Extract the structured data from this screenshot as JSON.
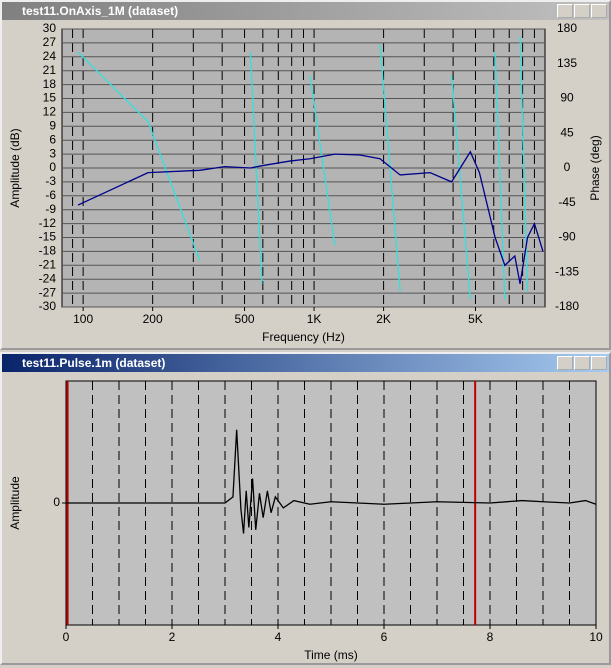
{
  "chart_data": [
    {
      "type": "line",
      "title": "test11.OnAxis_1M (dataset)",
      "xlabel": "Frequency (Hz)",
      "ylabel": "Amplitude (dB)",
      "y2label": "Phase (deg)",
      "xlog": true,
      "xlim": [
        81,
        10000
      ],
      "xticks": [
        100,
        200,
        500,
        {
          "value": 1000,
          "label": "1K"
        },
        {
          "value": 2000,
          "label": "2K"
        },
        {
          "value": 5000,
          "label": "5K"
        }
      ],
      "xgrid": [
        90,
        100,
        200,
        300,
        400,
        500,
        600,
        700,
        800,
        900,
        1000,
        2000,
        3000,
        4000,
        5000,
        6000,
        7000,
        8000,
        9000
      ],
      "ylim": [
        -30,
        30
      ],
      "yticks": [
        -30,
        -27,
        -24,
        -21,
        -18,
        -15,
        -12,
        -9,
        -6,
        -3,
        0,
        3,
        6,
        9,
        12,
        15,
        18,
        21,
        24,
        27,
        30
      ],
      "y2lim": [
        -180,
        180
      ],
      "y2ticks": [
        -180,
        -135,
        -90,
        -45,
        0,
        45,
        90,
        135,
        180
      ],
      "x": [
        95,
        191,
        320,
        410,
        530,
        595,
        785,
        960,
        1230,
        1580,
        1930,
        2360,
        3180,
        3940,
        4750,
        5200,
        6080,
        6700,
        7400,
        7800,
        8400,
        9000,
        9800
      ],
      "series": [
        {
          "name": "Amplitude",
          "color": "#00008b",
          "values": [
            -8,
            -1,
            -0.5,
            0.3,
            0,
            0.5,
            1.5,
            2,
            3,
            2.8,
            2,
            -1.5,
            -1,
            -3,
            3.5,
            -1,
            -15,
            -21,
            -19,
            -25,
            -15,
            -12,
            -18
          ]
        },
        {
          "name": "Phase",
          "color": "#33e0e0",
          "axis": "y2",
          "values": [
            150,
            60,
            -120,
            null,
            150,
            -150,
            null,
            120,
            -100,
            null,
            160,
            -160,
            null,
            120,
            -170,
            null,
            150,
            -170,
            null,
            170,
            -160,
            null,
            175
          ]
        }
      ]
    },
    {
      "type": "line",
      "title": "test11.Pulse.1m (dataset)",
      "xlabel": "Time (ms)",
      "ylabel": "Amplitude",
      "xlim": [
        0,
        10
      ],
      "xticks": [
        0,
        2,
        4,
        6,
        8,
        10
      ],
      "xgrid": [
        0.5,
        1,
        1.5,
        2,
        2.5,
        3,
        3.5,
        4,
        4.5,
        5,
        5.5,
        6,
        6.5,
        7,
        7.5,
        8,
        8.5,
        9,
        9.5
      ],
      "markers": [
        0.03,
        7.72
      ],
      "ylim": [
        -1,
        1
      ],
      "yticks": [
        0
      ],
      "x": [
        0,
        3,
        3.15,
        3.22,
        3.3,
        3.35,
        3.4,
        3.45,
        3.52,
        3.58,
        3.65,
        3.72,
        3.8,
        3.87,
        3.95,
        4.1,
        4.3,
        4.6,
        5,
        6,
        7,
        8,
        8.6,
        9,
        9.5,
        9.8,
        10
      ],
      "series": [
        {
          "name": "Pulse",
          "color": "#000000",
          "values": [
            0,
            0,
            0.05,
            0.6,
            -0.05,
            -0.25,
            0.1,
            -0.2,
            0.2,
            -0.22,
            0.08,
            -0.12,
            0.1,
            -0.08,
            0.05,
            -0.04,
            0.02,
            -0.01,
            0.01,
            -0.01,
            0.01,
            0,
            0.02,
            0.01,
            0,
            0.02,
            -0.01
          ]
        }
      ]
    }
  ]
}
